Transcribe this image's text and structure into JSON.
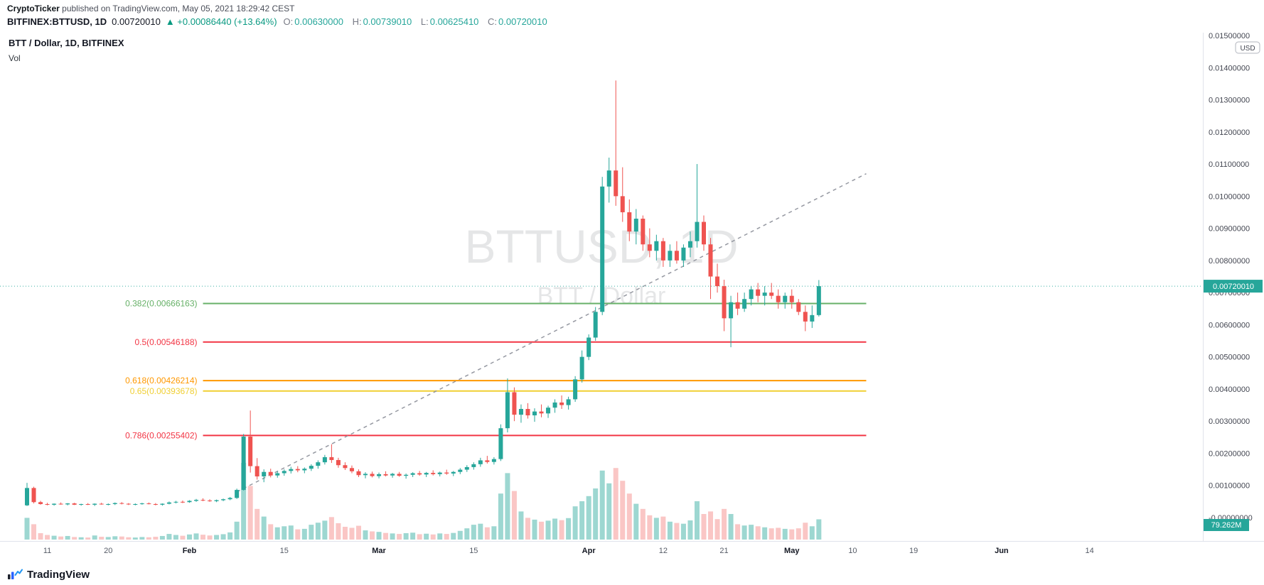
{
  "publish": {
    "author": "CryptoTicker",
    "rest": " published on TradingView.com, May 05, 2021 18:29:42 CEST"
  },
  "header": {
    "symbol": "BITFINEX:BTTUSD, 1D",
    "last_price": "0.00720010",
    "change": "▲ +0.00086440 (+13.64%)",
    "ohlc": [
      {
        "label": "O:",
        "value": "0.00630000"
      },
      {
        "label": "H:",
        "value": "0.00739010"
      },
      {
        "label": "L:",
        "value": "0.00625410"
      },
      {
        "label": "C:",
        "value": "0.00720010"
      }
    ],
    "colors": {
      "change": "#089981",
      "ohlc_value": "#26a69a",
      "ohlc_label": "#787b86"
    }
  },
  "legend": {
    "title": "BTT / Dollar, 1D, BITFINEX",
    "indicator": "Vol"
  },
  "watermark": {
    "line1": "BTTUSD, 1D",
    "line2": "BTT / Dollar"
  },
  "price_scale": {
    "unit": "USD",
    "labels": [
      "0.01500000",
      "0.01400000",
      "0.01300000",
      "0.01200000",
      "0.01100000",
      "0.01000000",
      "0.00900000",
      "0.00800000",
      "0.00700000",
      "0.00600000",
      "0.00500000",
      "0.00400000",
      "0.00300000",
      "0.00200000",
      "0.00100000",
      "-0.00000000"
    ]
  },
  "time_scale": {
    "labels": [
      {
        "text": "11",
        "day": 3
      },
      {
        "text": "20",
        "day": 12
      },
      {
        "text": "Feb",
        "day": 24,
        "major": true
      },
      {
        "text": "15",
        "day": 38
      },
      {
        "text": "Mar",
        "day": 52,
        "major": true
      },
      {
        "text": "15",
        "day": 66
      },
      {
        "text": "Apr",
        "day": 83,
        "major": true
      },
      {
        "text": "12",
        "day": 94
      },
      {
        "text": "21",
        "day": 103
      },
      {
        "text": "May",
        "day": 113,
        "major": true
      },
      {
        "text": "10",
        "day": 122
      },
      {
        "text": "19",
        "day": 131
      },
      {
        "text": "Jun",
        "day": 144,
        "major": true
      },
      {
        "text": "14",
        "day": 157
      }
    ]
  },
  "last_price_label": {
    "text": "0.00720010",
    "price": 0.0072001,
    "color": "#26a69a"
  },
  "volume_label": {
    "text": "79.262M",
    "color": "#26a69a"
  },
  "fib_retracement": {
    "levels": [
      {
        "label": "0.382(0.00666163)",
        "price": 0.00666163,
        "color": "#67b168"
      },
      {
        "label": "0.5(0.00546188)",
        "price": 0.00546188,
        "color": "#f23645"
      },
      {
        "label": "0.618(0.00426214)",
        "price": 0.00426214,
        "color": "#ff9800"
      },
      {
        "label": "0.65(0.00393678)",
        "price": 0.00393678,
        "color": "#f0cf33"
      },
      {
        "label": "0.786(0.00255402)",
        "price": 0.00255402,
        "color": "#f23645"
      }
    ],
    "start_day": 26,
    "end_day": 124
  },
  "trendline": {
    "start_day": 31,
    "start_price": 0.0008,
    "end_day": 124,
    "end_price": 0.0107,
    "color": "#9598a1",
    "style": "dashed"
  },
  "footer": {
    "brand": "TradingView"
  },
  "chart_data": {
    "type": "candlestick",
    "symbol": "BITFINEX:BTTUSD",
    "interval": "1D",
    "title": "BTT / Dollar, 1D, BITFINEX",
    "start_date": "2021-01-08",
    "ylim": [
      0,
      0.015
    ],
    "grid": false,
    "columns": [
      "open",
      "high",
      "low",
      "close",
      "volume_millions"
    ],
    "colors": {
      "up": "#26a69a",
      "down": "#ef5350",
      "vol_up": "rgba(38,166,154,0.45)",
      "vol_down": "rgba(239,83,80,0.33)"
    },
    "candles": [
      [
        0.00038,
        0.00108,
        0.00036,
        0.00092,
        85
      ],
      [
        0.00092,
        0.00096,
        0.00044,
        0.00048,
        60
      ],
      [
        0.00048,
        0.00052,
        0.0004,
        0.00042,
        25
      ],
      [
        0.00042,
        0.00046,
        0.00038,
        0.0004,
        18
      ],
      [
        0.0004,
        0.00044,
        0.00037,
        0.00043,
        15
      ],
      [
        0.00043,
        0.00047,
        0.0004,
        0.00041,
        12
      ],
      [
        0.00041,
        0.00045,
        0.00038,
        0.00044,
        14
      ],
      [
        0.00044,
        0.00046,
        0.00039,
        0.0004,
        10
      ],
      [
        0.0004,
        0.00043,
        0.00037,
        0.00042,
        9
      ],
      [
        0.00042,
        0.00045,
        0.00039,
        0.0004,
        8
      ],
      [
        0.0004,
        0.00044,
        0.00036,
        0.00043,
        16
      ],
      [
        0.00043,
        0.00046,
        0.0004,
        0.00041,
        11
      ],
      [
        0.00041,
        0.00044,
        0.00038,
        0.00042,
        10
      ],
      [
        0.00042,
        0.00047,
        0.00039,
        0.00045,
        13
      ],
      [
        0.00045,
        0.00048,
        0.00041,
        0.00043,
        12
      ],
      [
        0.00043,
        0.00045,
        0.00039,
        0.00041,
        9
      ],
      [
        0.00041,
        0.00044,
        0.00038,
        0.00042,
        8
      ],
      [
        0.00042,
        0.00046,
        0.0004,
        0.00044,
        10
      ],
      [
        0.00044,
        0.00047,
        0.00041,
        0.00042,
        9
      ],
      [
        0.00042,
        0.00045,
        0.00038,
        0.0004,
        11
      ],
      [
        0.0004,
        0.00044,
        0.00037,
        0.00043,
        14
      ],
      [
        0.00043,
        0.0005,
        0.00041,
        0.00047,
        22
      ],
      [
        0.00047,
        0.00052,
        0.00044,
        0.00049,
        18
      ],
      [
        0.00049,
        0.00053,
        0.00045,
        0.00048,
        15
      ],
      [
        0.00048,
        0.00054,
        0.00046,
        0.00052,
        20
      ],
      [
        0.00052,
        0.00058,
        0.00049,
        0.00055,
        24
      ],
      [
        0.00055,
        0.0006,
        0.00051,
        0.00053,
        19
      ],
      [
        0.00053,
        0.00057,
        0.00049,
        0.00051,
        16
      ],
      [
        0.00051,
        0.00056,
        0.00048,
        0.00054,
        18
      ],
      [
        0.00054,
        0.00059,
        0.00051,
        0.00057,
        21
      ],
      [
        0.00057,
        0.00064,
        0.00054,
        0.00061,
        28
      ],
      [
        0.00061,
        0.0009,
        0.00058,
        0.00086,
        70
      ],
      [
        0.00086,
        0.0026,
        0.00084,
        0.00252,
        300
      ],
      [
        0.00252,
        0.00333,
        0.0014,
        0.0016,
        210
      ],
      [
        0.0016,
        0.00185,
        0.00118,
        0.00128,
        120
      ],
      [
        0.00128,
        0.0015,
        0.0011,
        0.00142,
        90
      ],
      [
        0.00142,
        0.00152,
        0.00125,
        0.00131,
        60
      ],
      [
        0.00131,
        0.00144,
        0.00124,
        0.00138,
        48
      ],
      [
        0.00138,
        0.0015,
        0.0013,
        0.00145,
        52
      ],
      [
        0.00145,
        0.00158,
        0.00137,
        0.00151,
        55
      ],
      [
        0.00151,
        0.0016,
        0.00141,
        0.00147,
        40
      ],
      [
        0.00147,
        0.00156,
        0.00138,
        0.00152,
        42
      ],
      [
        0.00152,
        0.00166,
        0.00145,
        0.00161,
        58
      ],
      [
        0.00161,
        0.00178,
        0.00152,
        0.00172,
        66
      ],
      [
        0.00172,
        0.00195,
        0.00165,
        0.00188,
        74
      ],
      [
        0.00188,
        0.00228,
        0.0017,
        0.00179,
        88
      ],
      [
        0.00179,
        0.00186,
        0.00155,
        0.00163,
        64
      ],
      [
        0.00163,
        0.00172,
        0.00148,
        0.00154,
        50
      ],
      [
        0.00154,
        0.00162,
        0.00138,
        0.00144,
        46
      ],
      [
        0.00144,
        0.0015,
        0.00126,
        0.00132,
        54
      ],
      [
        0.00132,
        0.00141,
        0.00122,
        0.00136,
        36
      ],
      [
        0.00136,
        0.00143,
        0.00125,
        0.00129,
        32
      ],
      [
        0.00129,
        0.0014,
        0.00122,
        0.00135,
        30
      ],
      [
        0.00135,
        0.00144,
        0.00128,
        0.00131,
        26
      ],
      [
        0.00131,
        0.00139,
        0.00124,
        0.00136,
        24
      ],
      [
        0.00136,
        0.00142,
        0.00127,
        0.0013,
        22
      ],
      [
        0.0013,
        0.00137,
        0.00121,
        0.00133,
        25
      ],
      [
        0.00133,
        0.00141,
        0.00126,
        0.00138,
        27
      ],
      [
        0.00138,
        0.00145,
        0.0013,
        0.00134,
        21
      ],
      [
        0.00134,
        0.00142,
        0.00126,
        0.00139,
        23
      ],
      [
        0.00139,
        0.00147,
        0.00131,
        0.00135,
        20
      ],
      [
        0.00135,
        0.00143,
        0.00128,
        0.0014,
        24
      ],
      [
        0.0014,
        0.00149,
        0.00133,
        0.00137,
        22
      ],
      [
        0.00137,
        0.00145,
        0.00129,
        0.00142,
        26
      ],
      [
        0.00142,
        0.00154,
        0.00135,
        0.00149,
        34
      ],
      [
        0.00149,
        0.00163,
        0.00142,
        0.00157,
        44
      ],
      [
        0.00157,
        0.00172,
        0.00149,
        0.00166,
        58
      ],
      [
        0.00166,
        0.00186,
        0.00158,
        0.00178,
        62
      ],
      [
        0.00178,
        0.00192,
        0.00168,
        0.00173,
        48
      ],
      [
        0.00173,
        0.00188,
        0.00165,
        0.00182,
        52
      ],
      [
        0.00182,
        0.0029,
        0.00176,
        0.00278,
        180
      ],
      [
        0.00278,
        0.00433,
        0.00265,
        0.0039,
        260
      ],
      [
        0.0039,
        0.00405,
        0.003,
        0.0032,
        190
      ],
      [
        0.0032,
        0.00352,
        0.00295,
        0.00338,
        110
      ],
      [
        0.00338,
        0.00356,
        0.00308,
        0.00318,
        85
      ],
      [
        0.00318,
        0.0034,
        0.00298,
        0.0033,
        78
      ],
      [
        0.0033,
        0.00352,
        0.00312,
        0.00324,
        70
      ],
      [
        0.00324,
        0.00348,
        0.0031,
        0.00342,
        74
      ],
      [
        0.00342,
        0.00368,
        0.00326,
        0.00358,
        82
      ],
      [
        0.00358,
        0.0038,
        0.00338,
        0.0035,
        76
      ],
      [
        0.0035,
        0.00376,
        0.00336,
        0.00368,
        84
      ],
      [
        0.00368,
        0.0044,
        0.0036,
        0.0043,
        130
      ],
      [
        0.0043,
        0.0052,
        0.0042,
        0.005,
        150
      ],
      [
        0.005,
        0.0057,
        0.0049,
        0.0056,
        170
      ],
      [
        0.0056,
        0.00655,
        0.0055,
        0.0064,
        200
      ],
      [
        0.0064,
        0.0106,
        0.0063,
        0.0103,
        270
      ],
      [
        0.0103,
        0.0112,
        0.0098,
        0.0108,
        220
      ],
      [
        0.0108,
        0.0136,
        0.0097,
        0.01,
        280
      ],
      [
        0.01,
        0.0109,
        0.0092,
        0.0095,
        230
      ],
      [
        0.0095,
        0.0099,
        0.0086,
        0.0089,
        180
      ],
      [
        0.0089,
        0.0096,
        0.0085,
        0.0093,
        140
      ],
      [
        0.0093,
        0.0094,
        0.0083,
        0.0085,
        120
      ],
      [
        0.0085,
        0.009,
        0.0081,
        0.0083,
        95
      ],
      [
        0.0083,
        0.0088,
        0.008,
        0.0086,
        85
      ],
      [
        0.0086,
        0.0087,
        0.0078,
        0.008,
        90
      ],
      [
        0.008,
        0.0085,
        0.0078,
        0.0083,
        70
      ],
      [
        0.0083,
        0.0086,
        0.0079,
        0.008,
        65
      ],
      [
        0.008,
        0.0085,
        0.0078,
        0.0084,
        62
      ],
      [
        0.0084,
        0.0089,
        0.0081,
        0.0086,
        75
      ],
      [
        0.0086,
        0.011,
        0.0084,
        0.0092,
        150
      ],
      [
        0.0092,
        0.0094,
        0.0083,
        0.0085,
        100
      ],
      [
        0.0085,
        0.0087,
        0.0068,
        0.0075,
        110
      ],
      [
        0.0075,
        0.0079,
        0.007,
        0.0072,
        80
      ],
      [
        0.0072,
        0.0074,
        0.0058,
        0.0062,
        120
      ],
      [
        0.0062,
        0.0069,
        0.0053,
        0.0067,
        100
      ],
      [
        0.0067,
        0.007,
        0.0063,
        0.0065,
        60
      ],
      [
        0.0065,
        0.007,
        0.0064,
        0.0068,
        55
      ],
      [
        0.0068,
        0.0072,
        0.0066,
        0.0071,
        58
      ],
      [
        0.0071,
        0.0073,
        0.0067,
        0.0069,
        52
      ],
      [
        0.0069,
        0.0072,
        0.0066,
        0.007,
        48
      ],
      [
        0.007,
        0.0073,
        0.0068,
        0.0069,
        44
      ],
      [
        0.0069,
        0.0071,
        0.0065,
        0.0067,
        46
      ],
      [
        0.0067,
        0.007,
        0.0065,
        0.0069,
        42
      ],
      [
        0.0069,
        0.0071,
        0.0065,
        0.0067,
        40
      ],
      [
        0.0067,
        0.0068,
        0.0063,
        0.0064,
        44
      ],
      [
        0.0064,
        0.0066,
        0.0058,
        0.0061,
        66
      ],
      [
        0.0061,
        0.0066,
        0.0059,
        0.0063,
        52
      ],
      [
        0.0063,
        0.0073901,
        0.0062541,
        0.0072001,
        79.262
      ]
    ]
  }
}
